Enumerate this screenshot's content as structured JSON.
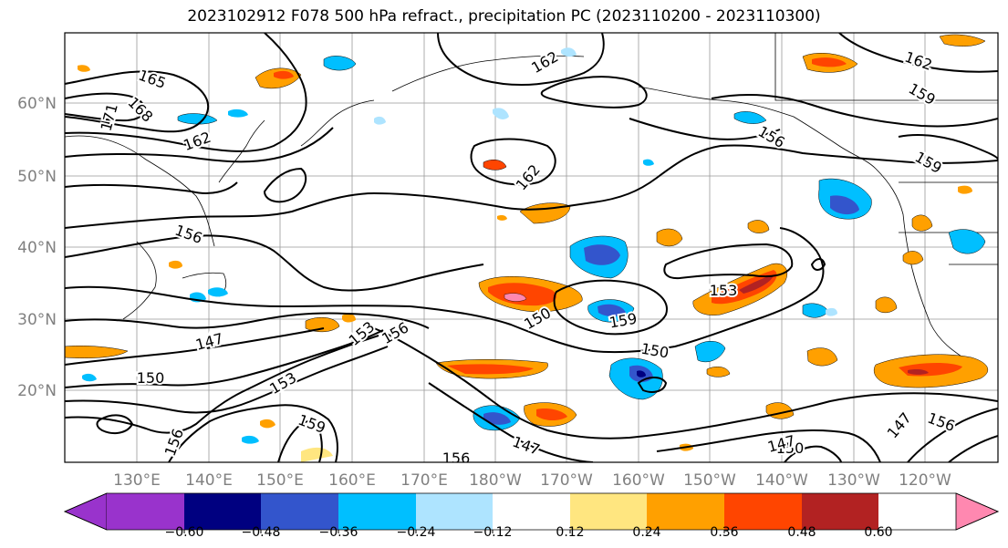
{
  "title": "2023102912 F078 500 hPa refract., precipitation PC (2023110200 - 2023110300)",
  "map": {
    "lat_labels": [
      "60°N",
      "50°N",
      "40°N",
      "30°N",
      "20°N"
    ],
    "lon_labels": [
      "130°E",
      "140°E",
      "150°E",
      "160°E",
      "170°E",
      "180°W",
      "170°W",
      "160°W",
      "150°W",
      "140°W",
      "130°W",
      "120°W"
    ],
    "contour_labels": [
      "165",
      "168",
      "171",
      "162",
      "162",
      "162",
      "162",
      "159",
      "159",
      "156",
      "156",
      "153",
      "150",
      "159",
      "156",
      "147",
      "150",
      "153",
      "150",
      "159",
      "147",
      "150",
      "147",
      "156",
      "156",
      "153",
      "147",
      "156"
    ],
    "label_color": "#808080"
  },
  "colorbar": {
    "colors": [
      "#9933cc",
      "#000080",
      "#3355cc",
      "#00bfff",
      "#aee4ff",
      "#ffffff",
      "#ffe680",
      "#ffa000",
      "#ff4500",
      "#b22222",
      "#ff88b0"
    ],
    "tick_labels": [
      "−0.60",
      "−0.48",
      "−0.36",
      "−0.24",
      "−0.12",
      "0.12",
      "0.24",
      "0.36",
      "0.48",
      "0.60"
    ]
  }
}
